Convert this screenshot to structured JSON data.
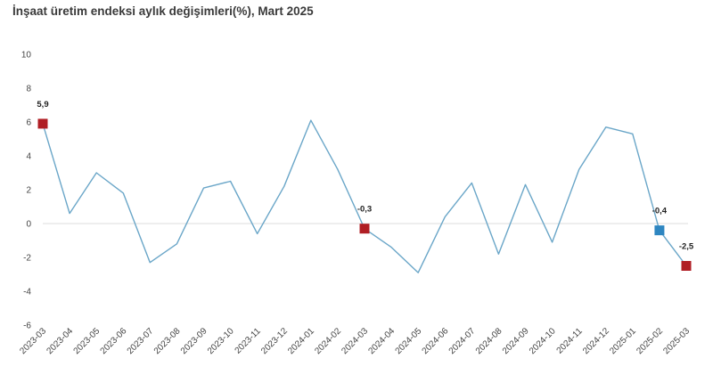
{
  "title": "İnşaat üretim endeksi aylık değişimleri(%), Mart 2025",
  "chart_data": {
    "type": "line",
    "title": "İnşaat üretim endeksi aylık değişimleri(%), Mart 2025",
    "xlabel": "",
    "ylabel": "",
    "ylim": [
      -6,
      10
    ],
    "yticks": [
      -6,
      -4,
      -2,
      0,
      2,
      4,
      6,
      8,
      10
    ],
    "grid": false,
    "categories": [
      "2023-03",
      "2023-04",
      "2023-05",
      "2023-06",
      "2023-07",
      "2023-08",
      "2023-09",
      "2023-10",
      "2023-11",
      "2023-12",
      "2024-01",
      "2024-02",
      "2024-03",
      "2024-04",
      "2024-05",
      "2024-06",
      "2024-07",
      "2024-08",
      "2024-09",
      "2024-10",
      "2024-11",
      "2024-12",
      "2025-01",
      "2025-02",
      "2025-03"
    ],
    "series": [
      {
        "values": [
          5.9,
          0.6,
          3.0,
          1.8,
          -2.3,
          -1.2,
          2.1,
          2.5,
          -0.6,
          2.2,
          6.1,
          3.2,
          -0.3,
          -1.4,
          -2.9,
          0.4,
          2.4,
          -1.8,
          2.3,
          -1.1,
          3.2,
          5.7,
          5.3,
          -0.4,
          -2.5
        ],
        "color": "#6aa6c8"
      }
    ],
    "markers": [
      {
        "index": 0,
        "label": "5,9",
        "color": "#b01e24"
      },
      {
        "index": 12,
        "label": "-0,3",
        "color": "#b01e24"
      },
      {
        "index": 23,
        "label": "-0,4",
        "color": "#2e86c1"
      },
      {
        "index": 24,
        "label": "-2,5",
        "color": "#b01e24"
      }
    ],
    "zero_line_color": "#dddddd"
  }
}
